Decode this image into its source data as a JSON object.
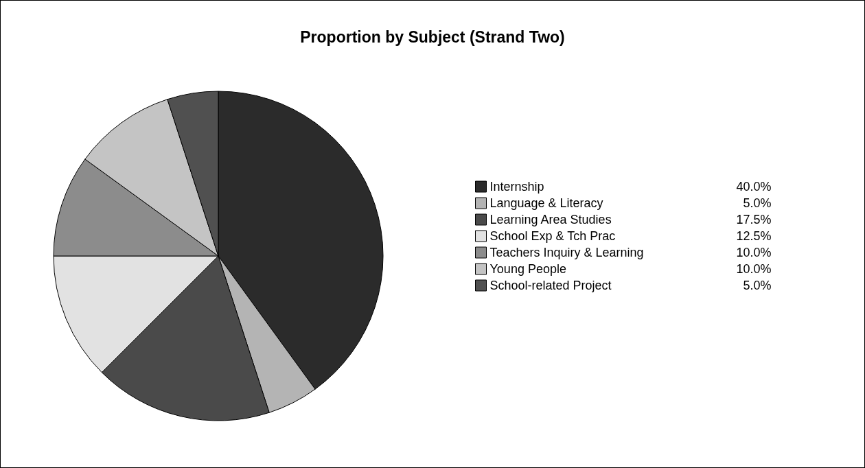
{
  "chart_data": {
    "type": "pie",
    "title": "Proportion by Subject (Strand Two)",
    "categories": [
      "Internship",
      "Language & Literacy",
      "Learning Area Studies",
      "School Exp & Tch Prac",
      "Teachers Inquiry & Learning",
      "Young People",
      "School-related Project"
    ],
    "values": [
      40.0,
      5.0,
      17.5,
      12.5,
      10.0,
      10.0,
      5.0
    ],
    "value_labels": [
      "40.0%",
      "5.0%",
      "17.5%",
      "12.5%",
      "10.0%",
      "10.0%",
      "5.0%"
    ],
    "colors": [
      "#2b2b2b",
      "#b4b4b4",
      "#4a4a4a",
      "#e2e2e2",
      "#8c8c8c",
      "#c4c4c4",
      "#505050"
    ],
    "legend": "right"
  }
}
